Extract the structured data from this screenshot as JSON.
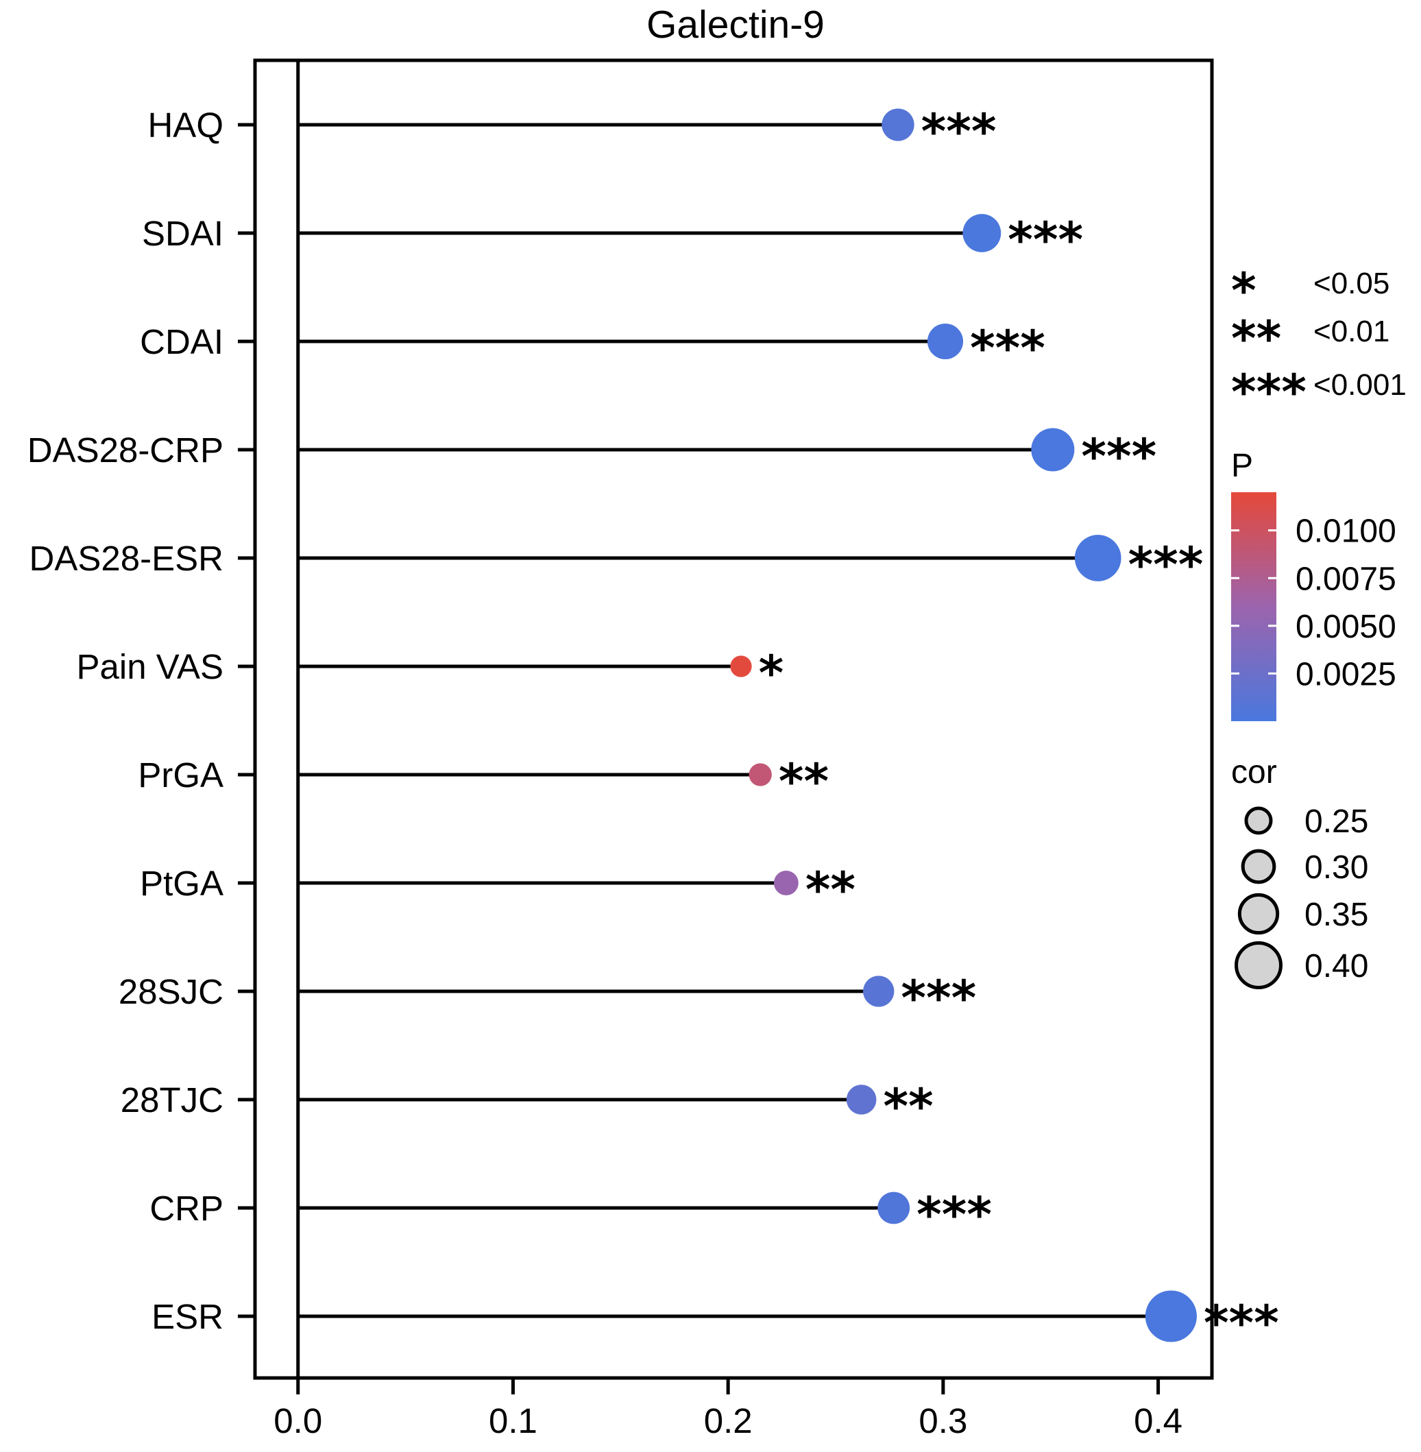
{
  "chart_data": {
    "type": "lollipop",
    "title": "Galectin-9",
    "xlabel": "",
    "ylabel": "",
    "xlim": [
      -0.02,
      0.425
    ],
    "x_ticks": [
      "0.0",
      "0.1",
      "0.2",
      "0.3",
      "0.4"
    ],
    "x_tick_values": [
      0.0,
      0.1,
      0.2,
      0.3,
      0.4
    ],
    "grid": false,
    "categories": [
      "HAQ",
      "SDAI",
      "CDAI",
      "DAS28-CRP",
      "DAS28-ESR",
      "Pain VAS",
      "PrGA",
      "PtGA",
      "28SJC",
      "28TJC",
      "CRP",
      "ESR"
    ],
    "cor": [
      0.279,
      0.318,
      0.301,
      0.351,
      0.372,
      0.206,
      0.215,
      0.227,
      0.27,
      0.262,
      0.277,
      0.406
    ],
    "p_values": [
      0.0008,
      0.0001,
      0.0002,
      3e-05,
      1e-05,
      0.0118,
      0.009,
      0.0058,
      0.001,
      0.0016,
      0.0005,
      1e-06
    ],
    "significance": [
      "***",
      "***",
      "***",
      "***",
      "***",
      "*",
      "**",
      "**",
      "***",
      "**",
      "***",
      "***"
    ],
    "significance_legend": [
      {
        "stars": "*",
        "label": "<0.05"
      },
      {
        "stars": "**",
        "label": "<0.01"
      },
      {
        "stars": "***",
        "label": "<0.001"
      }
    ],
    "color_legend": {
      "title": "P",
      "ticks": [
        "0.0100",
        "0.0075",
        "0.0050",
        "0.0025"
      ],
      "tick_values": [
        0.01,
        0.0075,
        0.005,
        0.0025
      ],
      "range": [
        0.0,
        0.012
      ],
      "low_color": "#4a78de",
      "high_color": "#e5493a"
    },
    "size_legend": {
      "title": "cor",
      "labels": [
        "0.25",
        "0.30",
        "0.35",
        "0.40"
      ],
      "values": [
        0.25,
        0.3,
        0.35,
        0.4
      ]
    }
  }
}
